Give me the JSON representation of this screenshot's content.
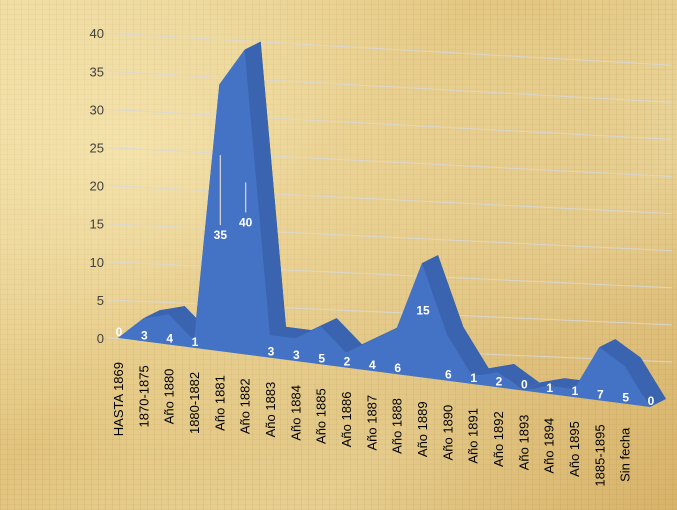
{
  "chart_data": {
    "type": "area",
    "categories": [
      "HASTA 1869",
      "1870-1875",
      "Año 1880",
      "1880-1882",
      "Año 1881",
      "Año 1882",
      "Año 1883",
      "Año 1884",
      "Año 1885",
      "Año 1886",
      "Año 1887",
      "Año 1888",
      "Año 1889",
      "Año 1890",
      "Año 1891",
      "Año 1892",
      "Año 1893",
      "Año 1894",
      "Año 1895",
      "1885-1895",
      "Sin fecha",
      ""
    ],
    "values": [
      0,
      3,
      4,
      1,
      35,
      40,
      3,
      3,
      5,
      2,
      4,
      6,
      15,
      6,
      1,
      2,
      0,
      1,
      1,
      7,
      5,
      0
    ],
    "ylim": [
      0,
      40
    ],
    "yticks": [
      "0",
      "5",
      "10",
      "15",
      "20",
      "25",
      "30",
      "35",
      "40"
    ],
    "grid": true,
    "legend": "none",
    "colors": {
      "fill": "#4472c4",
      "edge": "#2f5597",
      "gridline": "#d9d9d9"
    }
  }
}
